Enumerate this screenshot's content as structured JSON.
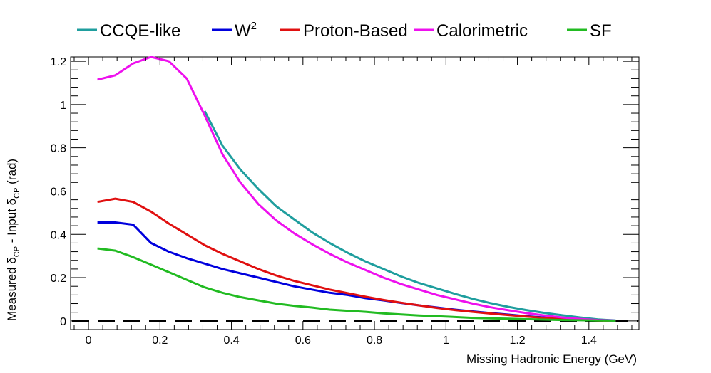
{
  "chart_data": {
    "type": "line",
    "title": "",
    "xlabel": "Missing Hadronic Energy (GeV)",
    "ylabel": {
      "part1": "Measured δ",
      "sub1": "CP",
      "part2": " - Input δ",
      "sub2": "CP",
      "part3": " (rad)"
    },
    "xlim": [
      -0.05,
      1.54
    ],
    "ylim": [
      -0.04,
      1.22
    ],
    "xticks": [
      0,
      0.2,
      0.4,
      0.6,
      0.8,
      1,
      1.2,
      1.4
    ],
    "xtick_labels": [
      "0",
      "0.2",
      "0.4",
      "0.6",
      "0.8",
      "1",
      "1.2",
      "1.4"
    ],
    "yticks": [
      0,
      0.2,
      0.4,
      0.6,
      0.8,
      1,
      1.2
    ],
    "ytick_labels": [
      "0",
      "0.2",
      "0.4",
      "0.6",
      "0.8",
      "1",
      "1.2"
    ],
    "grid": false,
    "legend_position": "top",
    "reference_line": {
      "y": 0,
      "style": "dashed",
      "color": "#000000"
    },
    "series": [
      {
        "name": "CCQE-like",
        "color": "#1f9e9e",
        "x": [
          0.325,
          0.375,
          0.425,
          0.475,
          0.525,
          0.575,
          0.625,
          0.675,
          0.725,
          0.775,
          0.825,
          0.875,
          0.925,
          0.975,
          1.025,
          1.075,
          1.125,
          1.175,
          1.225,
          1.275,
          1.325,
          1.375,
          1.425,
          1.475
        ],
        "values": [
          0.97,
          0.81,
          0.7,
          0.61,
          0.53,
          0.47,
          0.41,
          0.36,
          0.315,
          0.275,
          0.24,
          0.205,
          0.175,
          0.15,
          0.125,
          0.102,
          0.082,
          0.065,
          0.05,
          0.037,
          0.026,
          0.016,
          0.007,
          0.002
        ]
      },
      {
        "name": "W",
        "name_sup": "2",
        "color": "#0000dd",
        "x": [
          0.025,
          0.075,
          0.125,
          0.175,
          0.225,
          0.275,
          0.325,
          0.375,
          0.425,
          0.475,
          0.525,
          0.575,
          0.625,
          0.675,
          0.725,
          0.775,
          0.825,
          0.875,
          0.925,
          0.975,
          1.025,
          1.075,
          1.125,
          1.175,
          1.225,
          1.275,
          1.325,
          1.375,
          1.425,
          1.475
        ],
        "values": [
          0.455,
          0.455,
          0.445,
          0.36,
          0.32,
          0.29,
          0.265,
          0.24,
          0.22,
          0.2,
          0.18,
          0.16,
          0.145,
          0.13,
          0.12,
          0.105,
          0.095,
          0.083,
          0.072,
          0.062,
          0.052,
          0.044,
          0.036,
          0.029,
          0.022,
          0.016,
          0.011,
          0.007,
          0.004,
          0.001
        ]
      },
      {
        "name": "Proton-Based",
        "color": "#e01010",
        "x": [
          0.025,
          0.075,
          0.125,
          0.175,
          0.225,
          0.275,
          0.325,
          0.375,
          0.425,
          0.475,
          0.525,
          0.575,
          0.625,
          0.675,
          0.725,
          0.775,
          0.825,
          0.875,
          0.925,
          0.975,
          1.025,
          1.075,
          1.125,
          1.175,
          1.225,
          1.275,
          1.325,
          1.375,
          1.425,
          1.475
        ],
        "values": [
          0.55,
          0.565,
          0.55,
          0.505,
          0.45,
          0.4,
          0.35,
          0.31,
          0.275,
          0.24,
          0.21,
          0.185,
          0.165,
          0.145,
          0.128,
          0.112,
          0.097,
          0.084,
          0.072,
          0.06,
          0.05,
          0.042,
          0.034,
          0.027,
          0.02,
          0.014,
          0.009,
          0.005,
          0.002,
          0.0
        ]
      },
      {
        "name": "Calorimetric",
        "color": "#ee10ee",
        "x": [
          0.025,
          0.075,
          0.125,
          0.175,
          0.225,
          0.275,
          0.325,
          0.375,
          0.425,
          0.475,
          0.525,
          0.575,
          0.625,
          0.675,
          0.725,
          0.775,
          0.825,
          0.875,
          0.925,
          0.975,
          1.025,
          1.075,
          1.125,
          1.175,
          1.225,
          1.275,
          1.325,
          1.375,
          1.425,
          1.475
        ],
        "values": [
          1.115,
          1.135,
          1.19,
          1.22,
          1.2,
          1.12,
          0.95,
          0.77,
          0.64,
          0.54,
          0.465,
          0.405,
          0.355,
          0.31,
          0.27,
          0.235,
          0.2,
          0.17,
          0.145,
          0.12,
          0.1,
          0.08,
          0.063,
          0.049,
          0.036,
          0.025,
          0.016,
          0.009,
          0.004,
          0.001
        ]
      },
      {
        "name": "SF",
        "color": "#22bb22",
        "x": [
          0.025,
          0.075,
          0.125,
          0.175,
          0.225,
          0.275,
          0.325,
          0.375,
          0.425,
          0.475,
          0.525,
          0.575,
          0.625,
          0.675,
          0.725,
          0.775,
          0.825,
          0.875,
          0.925,
          0.975,
          1.025,
          1.075,
          1.125,
          1.175,
          1.225,
          1.275,
          1.325,
          1.375,
          1.425,
          1.475
        ],
        "values": [
          0.335,
          0.325,
          0.295,
          0.26,
          0.225,
          0.19,
          0.155,
          0.13,
          0.11,
          0.095,
          0.08,
          0.07,
          0.062,
          0.052,
          0.047,
          0.042,
          0.035,
          0.03,
          0.025,
          0.022,
          0.018,
          0.014,
          0.012,
          0.01,
          0.008,
          0.006,
          0.004,
          0.003,
          0.002,
          0.001
        ]
      }
    ]
  }
}
